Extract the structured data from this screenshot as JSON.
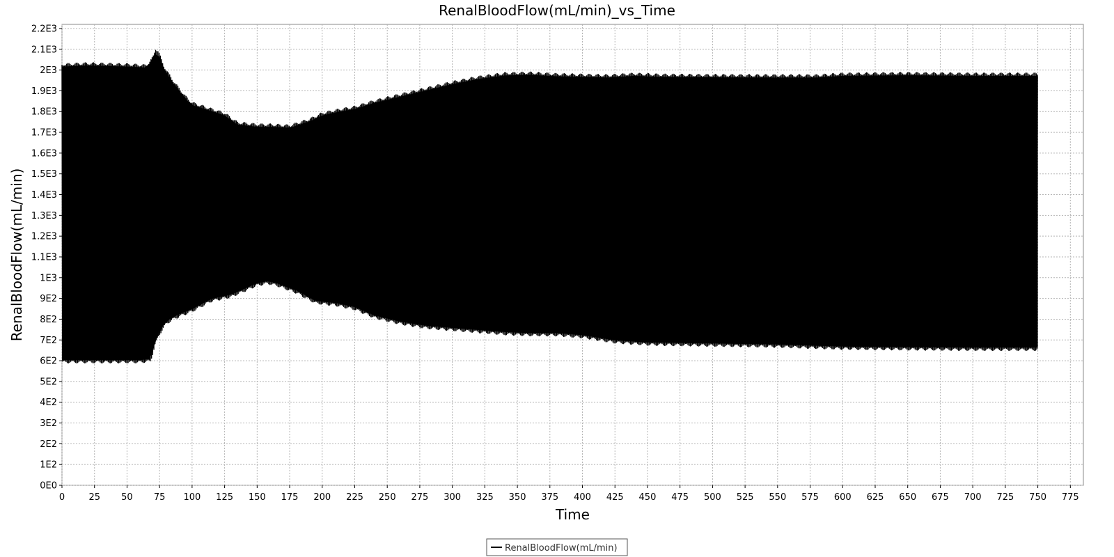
{
  "chart_data": {
    "type": "line",
    "title": "RenalBloodFlow(mL/min)_vs_Time",
    "xlabel": "Time",
    "ylabel": "RenalBloodFlow(mL/min)",
    "xlim": [
      0,
      785
    ],
    "ylim": [
      0,
      2220
    ],
    "x_ticks": [
      0,
      25,
      50,
      75,
      100,
      125,
      150,
      175,
      200,
      225,
      250,
      275,
      300,
      325,
      350,
      375,
      400,
      425,
      450,
      475,
      500,
      525,
      550,
      575,
      600,
      625,
      650,
      675,
      700,
      725,
      750,
      775
    ],
    "y_ticks": [
      0,
      100,
      200,
      300,
      400,
      500,
      600,
      700,
      800,
      900,
      1000,
      1100,
      1200,
      1300,
      1400,
      1500,
      1600,
      1700,
      1800,
      1900,
      2000,
      2100,
      2200
    ],
    "y_tick_labels": [
      "0E0",
      "1E2",
      "2E2",
      "3E2",
      "4E2",
      "5E2",
      "6E2",
      "7E2",
      "8E2",
      "9E2",
      "1E3",
      "1.1E3",
      "1.2E3",
      "1.3E3",
      "1.4E3",
      "1.5E3",
      "1.6E3",
      "1.7E3",
      "1.8E3",
      "1.9E3",
      "2E3",
      "2.1E3",
      "2.2E3"
    ],
    "grid": true,
    "legend_position": "bottom-center",
    "line_color": "#000000",
    "series": [
      {
        "name": "RenalBloodFlow(mL/min)",
        "style": "oscillating",
        "upper_envelope": {
          "x": [
            0,
            20,
            50,
            65,
            70,
            72,
            74,
            78,
            85,
            95,
            100,
            110,
            125,
            135,
            150,
            160,
            175,
            190,
            200,
            215,
            225,
            240,
            260,
            280,
            300,
            320,
            340,
            360,
            380,
            400,
            420,
            440,
            460,
            500,
            550,
            580,
            600,
            650,
            700,
            750
          ],
          "y": [
            2025,
            2030,
            2025,
            2020,
            2060,
            2100,
            2090,
            2020,
            1950,
            1870,
            1840,
            1820,
            1790,
            1745,
            1735,
            1735,
            1730,
            1760,
            1790,
            1810,
            1820,
            1850,
            1880,
            1910,
            1940,
            1965,
            1982,
            1985,
            1978,
            1975,
            1972,
            1980,
            1975,
            1973,
            1972,
            1972,
            1980,
            1983,
            1980,
            1980
          ]
        },
        "lower_envelope": {
          "x": [
            0,
            20,
            50,
            60,
            68,
            70,
            72,
            75,
            80,
            85,
            90,
            100,
            115,
            130,
            150,
            158,
            165,
            180,
            195,
            210,
            225,
            240,
            260,
            280,
            300,
            320,
            340,
            360,
            380,
            400,
            425,
            450,
            500,
            550,
            600,
            650,
            700,
            750
          ],
          "y": [
            595,
            595,
            595,
            595,
            600,
            640,
            690,
            730,
            780,
            800,
            815,
            840,
            890,
            910,
            965,
            975,
            965,
            930,
            880,
            870,
            850,
            810,
            780,
            760,
            750,
            740,
            730,
            725,
            725,
            715,
            690,
            680,
            675,
            670,
            660,
            657,
            655,
            655
          ]
        }
      }
    ]
  }
}
